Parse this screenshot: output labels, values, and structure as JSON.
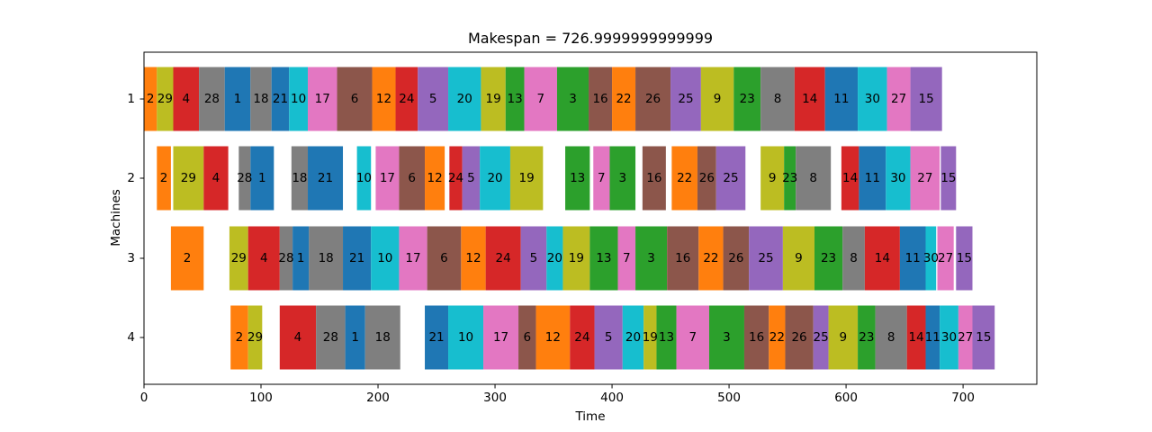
{
  "chart_data": {
    "type": "gantt",
    "title": "Makespan = 726.9999999999999",
    "xlabel": "Time",
    "ylabel": "Machines",
    "xlim": [
      0,
      763
    ],
    "xticks": [
      0,
      100,
      200,
      300,
      400,
      500,
      600,
      700
    ],
    "machines": [
      "1",
      "2",
      "3",
      "4"
    ],
    "grid": false,
    "job_colors": {
      "1": "#1f77b4",
      "2": "#ff7f0e",
      "3": "#2ca02c",
      "4": "#d62728",
      "5": "#9467bd",
      "6": "#8c564b",
      "7": "#e377c2",
      "8": "#7f7f7f",
      "9": "#bcbd22",
      "10": "#17becf",
      "11": "#1f77b4",
      "12": "#ff7f0e",
      "13": "#2ca02c",
      "14": "#d62728",
      "15": "#9467bd",
      "16": "#8c564b",
      "17": "#e377c2",
      "18": "#7f7f7f",
      "19": "#bcbd22",
      "20": "#17becf",
      "21": "#1f77b4",
      "22": "#ff7f0e",
      "23": "#2ca02c",
      "24": "#d62728",
      "25": "#9467bd",
      "26": "#8c564b",
      "27": "#e377c2",
      "28": "#7f7f7f",
      "29": "#bcbd22",
      "30": "#17becf"
    },
    "tasks": [
      {
        "machine": "1",
        "job": "2",
        "start": 0,
        "end": 11
      },
      {
        "machine": "1",
        "job": "29",
        "start": 11,
        "end": 25
      },
      {
        "machine": "1",
        "job": "4",
        "start": 25,
        "end": 47
      },
      {
        "machine": "1",
        "job": "28",
        "start": 47,
        "end": 69
      },
      {
        "machine": "1",
        "job": "1",
        "start": 69,
        "end": 91
      },
      {
        "machine": "1",
        "job": "18",
        "start": 91,
        "end": 109
      },
      {
        "machine": "1",
        "job": "21",
        "start": 109,
        "end": 124
      },
      {
        "machine": "1",
        "job": "10",
        "start": 124,
        "end": 140
      },
      {
        "machine": "1",
        "job": "17",
        "start": 140,
        "end": 165
      },
      {
        "machine": "1",
        "job": "6",
        "start": 165,
        "end": 195
      },
      {
        "machine": "1",
        "job": "12",
        "start": 195,
        "end": 215
      },
      {
        "machine": "1",
        "job": "24",
        "start": 215,
        "end": 234
      },
      {
        "machine": "1",
        "job": "5",
        "start": 234,
        "end": 260
      },
      {
        "machine": "1",
        "job": "20",
        "start": 260,
        "end": 288
      },
      {
        "machine": "1",
        "job": "19",
        "start": 288,
        "end": 309
      },
      {
        "machine": "1",
        "job": "13",
        "start": 309,
        "end": 325
      },
      {
        "machine": "1",
        "job": "7",
        "start": 325,
        "end": 353
      },
      {
        "machine": "1",
        "job": "3",
        "start": 353,
        "end": 380
      },
      {
        "machine": "1",
        "job": "16",
        "start": 380,
        "end": 400
      },
      {
        "machine": "1",
        "job": "22",
        "start": 400,
        "end": 420
      },
      {
        "machine": "1",
        "job": "26",
        "start": 420,
        "end": 450
      },
      {
        "machine": "1",
        "job": "25",
        "start": 450,
        "end": 476
      },
      {
        "machine": "1",
        "job": "9",
        "start": 476,
        "end": 504
      },
      {
        "machine": "1",
        "job": "23",
        "start": 504,
        "end": 527
      },
      {
        "machine": "1",
        "job": "8",
        "start": 527,
        "end": 556
      },
      {
        "machine": "1",
        "job": "14",
        "start": 556,
        "end": 582
      },
      {
        "machine": "1",
        "job": "11",
        "start": 582,
        "end": 610
      },
      {
        "machine": "1",
        "job": "30",
        "start": 610,
        "end": 635
      },
      {
        "machine": "1",
        "job": "27",
        "start": 635,
        "end": 655
      },
      {
        "machine": "1",
        "job": "15",
        "start": 655,
        "end": 682
      },
      {
        "machine": "2",
        "job": "2",
        "start": 11,
        "end": 23
      },
      {
        "machine": "2",
        "job": "29",
        "start": 25,
        "end": 51
      },
      {
        "machine": "2",
        "job": "4",
        "start": 51,
        "end": 72
      },
      {
        "machine": "2",
        "job": "28",
        "start": 81,
        "end": 91
      },
      {
        "machine": "2",
        "job": "1",
        "start": 91,
        "end": 111
      },
      {
        "machine": "2",
        "job": "18",
        "start": 126,
        "end": 140
      },
      {
        "machine": "2",
        "job": "21",
        "start": 140,
        "end": 170
      },
      {
        "machine": "2",
        "job": "10",
        "start": 182,
        "end": 194
      },
      {
        "machine": "2",
        "job": "17",
        "start": 198,
        "end": 218
      },
      {
        "machine": "2",
        "job": "6",
        "start": 218,
        "end": 240
      },
      {
        "machine": "2",
        "job": "12",
        "start": 240,
        "end": 257
      },
      {
        "machine": "2",
        "job": "24",
        "start": 261,
        "end": 272
      },
      {
        "machine": "2",
        "job": "5",
        "start": 272,
        "end": 287
      },
      {
        "machine": "2",
        "job": "20",
        "start": 287,
        "end": 313
      },
      {
        "machine": "2",
        "job": "19",
        "start": 313,
        "end": 341
      },
      {
        "machine": "2",
        "job": "13",
        "start": 360,
        "end": 381
      },
      {
        "machine": "2",
        "job": "7",
        "start": 384,
        "end": 398
      },
      {
        "machine": "2",
        "job": "3",
        "start": 398,
        "end": 420
      },
      {
        "machine": "2",
        "job": "16",
        "start": 426,
        "end": 446
      },
      {
        "machine": "2",
        "job": "22",
        "start": 451,
        "end": 473
      },
      {
        "machine": "2",
        "job": "26",
        "start": 473,
        "end": 489
      },
      {
        "machine": "2",
        "job": "25",
        "start": 489,
        "end": 514
      },
      {
        "machine": "2",
        "job": "9",
        "start": 527,
        "end": 547
      },
      {
        "machine": "2",
        "job": "23",
        "start": 547,
        "end": 557
      },
      {
        "machine": "2",
        "job": "8",
        "start": 557,
        "end": 587
      },
      {
        "machine": "2",
        "job": "14",
        "start": 596,
        "end": 611
      },
      {
        "machine": "2",
        "job": "11",
        "start": 611,
        "end": 634
      },
      {
        "machine": "2",
        "job": "30",
        "start": 634,
        "end": 655
      },
      {
        "machine": "2",
        "job": "27",
        "start": 655,
        "end": 680
      },
      {
        "machine": "2",
        "job": "15",
        "start": 681,
        "end": 694
      },
      {
        "machine": "3",
        "job": "2",
        "start": 23,
        "end": 51
      },
      {
        "machine": "3",
        "job": "29",
        "start": 73,
        "end": 89
      },
      {
        "machine": "3",
        "job": "4",
        "start": 89,
        "end": 116
      },
      {
        "machine": "3",
        "job": "28",
        "start": 116,
        "end": 127
      },
      {
        "machine": "3",
        "job": "1",
        "start": 127,
        "end": 141
      },
      {
        "machine": "3",
        "job": "18",
        "start": 141,
        "end": 170
      },
      {
        "machine": "3",
        "job": "21",
        "start": 170,
        "end": 194
      },
      {
        "machine": "3",
        "job": "10",
        "start": 194,
        "end": 218
      },
      {
        "machine": "3",
        "job": "17",
        "start": 218,
        "end": 242
      },
      {
        "machine": "3",
        "job": "6",
        "start": 242,
        "end": 271
      },
      {
        "machine": "3",
        "job": "12",
        "start": 271,
        "end": 292
      },
      {
        "machine": "3",
        "job": "24",
        "start": 292,
        "end": 322
      },
      {
        "machine": "3",
        "job": "5",
        "start": 322,
        "end": 344
      },
      {
        "machine": "3",
        "job": "20",
        "start": 344,
        "end": 358
      },
      {
        "machine": "3",
        "job": "19",
        "start": 358,
        "end": 381
      },
      {
        "machine": "3",
        "job": "13",
        "start": 381,
        "end": 405
      },
      {
        "machine": "3",
        "job": "7",
        "start": 405,
        "end": 420
      },
      {
        "machine": "3",
        "job": "3",
        "start": 420,
        "end": 447
      },
      {
        "machine": "3",
        "job": "16",
        "start": 447,
        "end": 474
      },
      {
        "machine": "3",
        "job": "22",
        "start": 474,
        "end": 495
      },
      {
        "machine": "3",
        "job": "26",
        "start": 495,
        "end": 517
      },
      {
        "machine": "3",
        "job": "25",
        "start": 517,
        "end": 546
      },
      {
        "machine": "3",
        "job": "9",
        "start": 546,
        "end": 573
      },
      {
        "machine": "3",
        "job": "23",
        "start": 573,
        "end": 597
      },
      {
        "machine": "3",
        "job": "8",
        "start": 597,
        "end": 616
      },
      {
        "machine": "3",
        "job": "14",
        "start": 616,
        "end": 646
      },
      {
        "machine": "3",
        "job": "11",
        "start": 646,
        "end": 668
      },
      {
        "machine": "3",
        "job": "30",
        "start": 668,
        "end": 677
      },
      {
        "machine": "3",
        "job": "27",
        "start": 678,
        "end": 692
      },
      {
        "machine": "3",
        "job": "15",
        "start": 694,
        "end": 708
      },
      {
        "machine": "4",
        "job": "2",
        "start": 74,
        "end": 89
      },
      {
        "machine": "4",
        "job": "29",
        "start": 89,
        "end": 101
      },
      {
        "machine": "4",
        "job": "4",
        "start": 116,
        "end": 147
      },
      {
        "machine": "4",
        "job": "28",
        "start": 147,
        "end": 172
      },
      {
        "machine": "4",
        "job": "1",
        "start": 172,
        "end": 189
      },
      {
        "machine": "4",
        "job": "18",
        "start": 189,
        "end": 219
      },
      {
        "machine": "4",
        "job": "21",
        "start": 240,
        "end": 260
      },
      {
        "machine": "4",
        "job": "10",
        "start": 260,
        "end": 290
      },
      {
        "machine": "4",
        "job": "17",
        "start": 290,
        "end": 320
      },
      {
        "machine": "4",
        "job": "6",
        "start": 320,
        "end": 335
      },
      {
        "machine": "4",
        "job": "12",
        "start": 335,
        "end": 364
      },
      {
        "machine": "4",
        "job": "24",
        "start": 364,
        "end": 385
      },
      {
        "machine": "4",
        "job": "5",
        "start": 385,
        "end": 409
      },
      {
        "machine": "4",
        "job": "20",
        "start": 409,
        "end": 427
      },
      {
        "machine": "4",
        "job": "19",
        "start": 427,
        "end": 438
      },
      {
        "machine": "4",
        "job": "13",
        "start": 438,
        "end": 455
      },
      {
        "machine": "4",
        "job": "7",
        "start": 455,
        "end": 483
      },
      {
        "machine": "4",
        "job": "3",
        "start": 483,
        "end": 513
      },
      {
        "machine": "4",
        "job": "16",
        "start": 513,
        "end": 534
      },
      {
        "machine": "4",
        "job": "22",
        "start": 534,
        "end": 548
      },
      {
        "machine": "4",
        "job": "26",
        "start": 548,
        "end": 572
      },
      {
        "machine": "4",
        "job": "25",
        "start": 572,
        "end": 585
      },
      {
        "machine": "4",
        "job": "9",
        "start": 585,
        "end": 610
      },
      {
        "machine": "4",
        "job": "23",
        "start": 610,
        "end": 625
      },
      {
        "machine": "4",
        "job": "8",
        "start": 625,
        "end": 652
      },
      {
        "machine": "4",
        "job": "14",
        "start": 652,
        "end": 668
      },
      {
        "machine": "4",
        "job": "11",
        "start": 668,
        "end": 680
      },
      {
        "machine": "4",
        "job": "30",
        "start": 680,
        "end": 696
      },
      {
        "machine": "4",
        "job": "27",
        "start": 696,
        "end": 708
      },
      {
        "machine": "4",
        "job": "15",
        "start": 708,
        "end": 727
      }
    ]
  }
}
